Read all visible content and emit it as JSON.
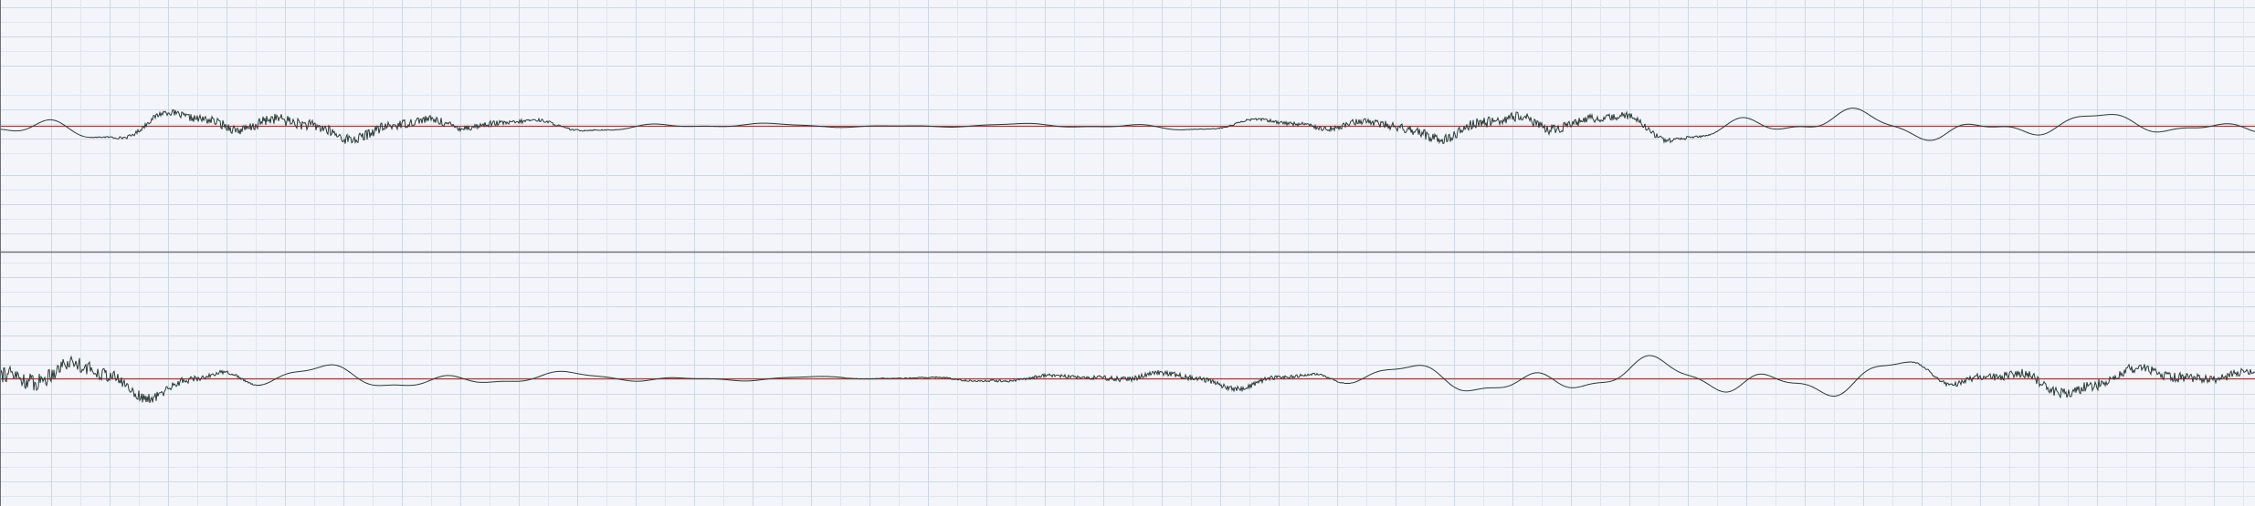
{
  "editor": {
    "channel_count": 2,
    "colors": {
      "background": "#f3f5fb",
      "grid_major": "#cfd8e2",
      "grid_minor": "#e0e6ee",
      "waveform": "#2a3a36",
      "baseline": "#b03a3a",
      "channel_divider": "#6f7379"
    },
    "channels": [
      {
        "id": "channel-1",
        "peak_level": 0.06
      },
      {
        "id": "channel-2",
        "peak_level": 0.08
      }
    ]
  }
}
